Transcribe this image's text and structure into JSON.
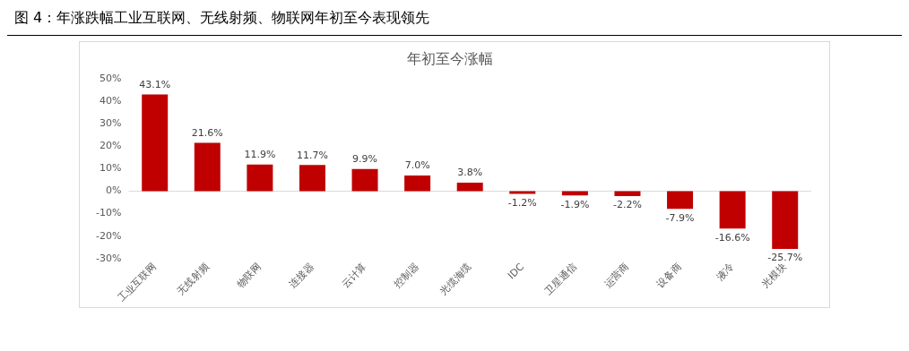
{
  "chart_data": {
    "type": "bar",
    "title": "图 4：年涨跌幅工业互联网、无线射频、物联网年初至今表现领先",
    "subtitle": "年初至今涨幅",
    "categories": [
      "工业互联网",
      "无线射频",
      "物联网",
      "连接器",
      "云计算",
      "控制器",
      "光缆海缆",
      "IDC",
      "卫星通信",
      "运营商",
      "设备商",
      "液冷",
      "光模块"
    ],
    "values": [
      43.1,
      21.6,
      11.9,
      11.7,
      9.9,
      7.0,
      3.8,
      -1.2,
      -1.9,
      -2.2,
      -7.9,
      -16.6,
      -25.7
    ],
    "value_labels": [
      "43.1%",
      "21.6%",
      "11.9%",
      "11.7%",
      "9.9%",
      "7.0%",
      "3.8%",
      "-1.2%",
      "-1.9%",
      "-2.2%",
      "-7.9%",
      "-16.6%",
      "-25.7%"
    ],
    "color": "#c00000",
    "ylim": [
      -30,
      50
    ],
    "yticks": [
      {
        "value": -30,
        "label": "-30%"
      },
      {
        "value": -20,
        "label": "-20%"
      },
      {
        "value": -10,
        "label": "-10%"
      },
      {
        "value": 0,
        "label": "0%"
      },
      {
        "value": 10,
        "label": "10%"
      },
      {
        "value": 20,
        "label": "20%"
      },
      {
        "value": 30,
        "label": "30%"
      },
      {
        "value": 40,
        "label": "40%"
      },
      {
        "value": 50,
        "label": "50%"
      }
    ],
    "ref_lines": [
      {
        "axis": "y",
        "value": 0,
        "color": "#d9d9d9"
      }
    ],
    "legend": false
  }
}
